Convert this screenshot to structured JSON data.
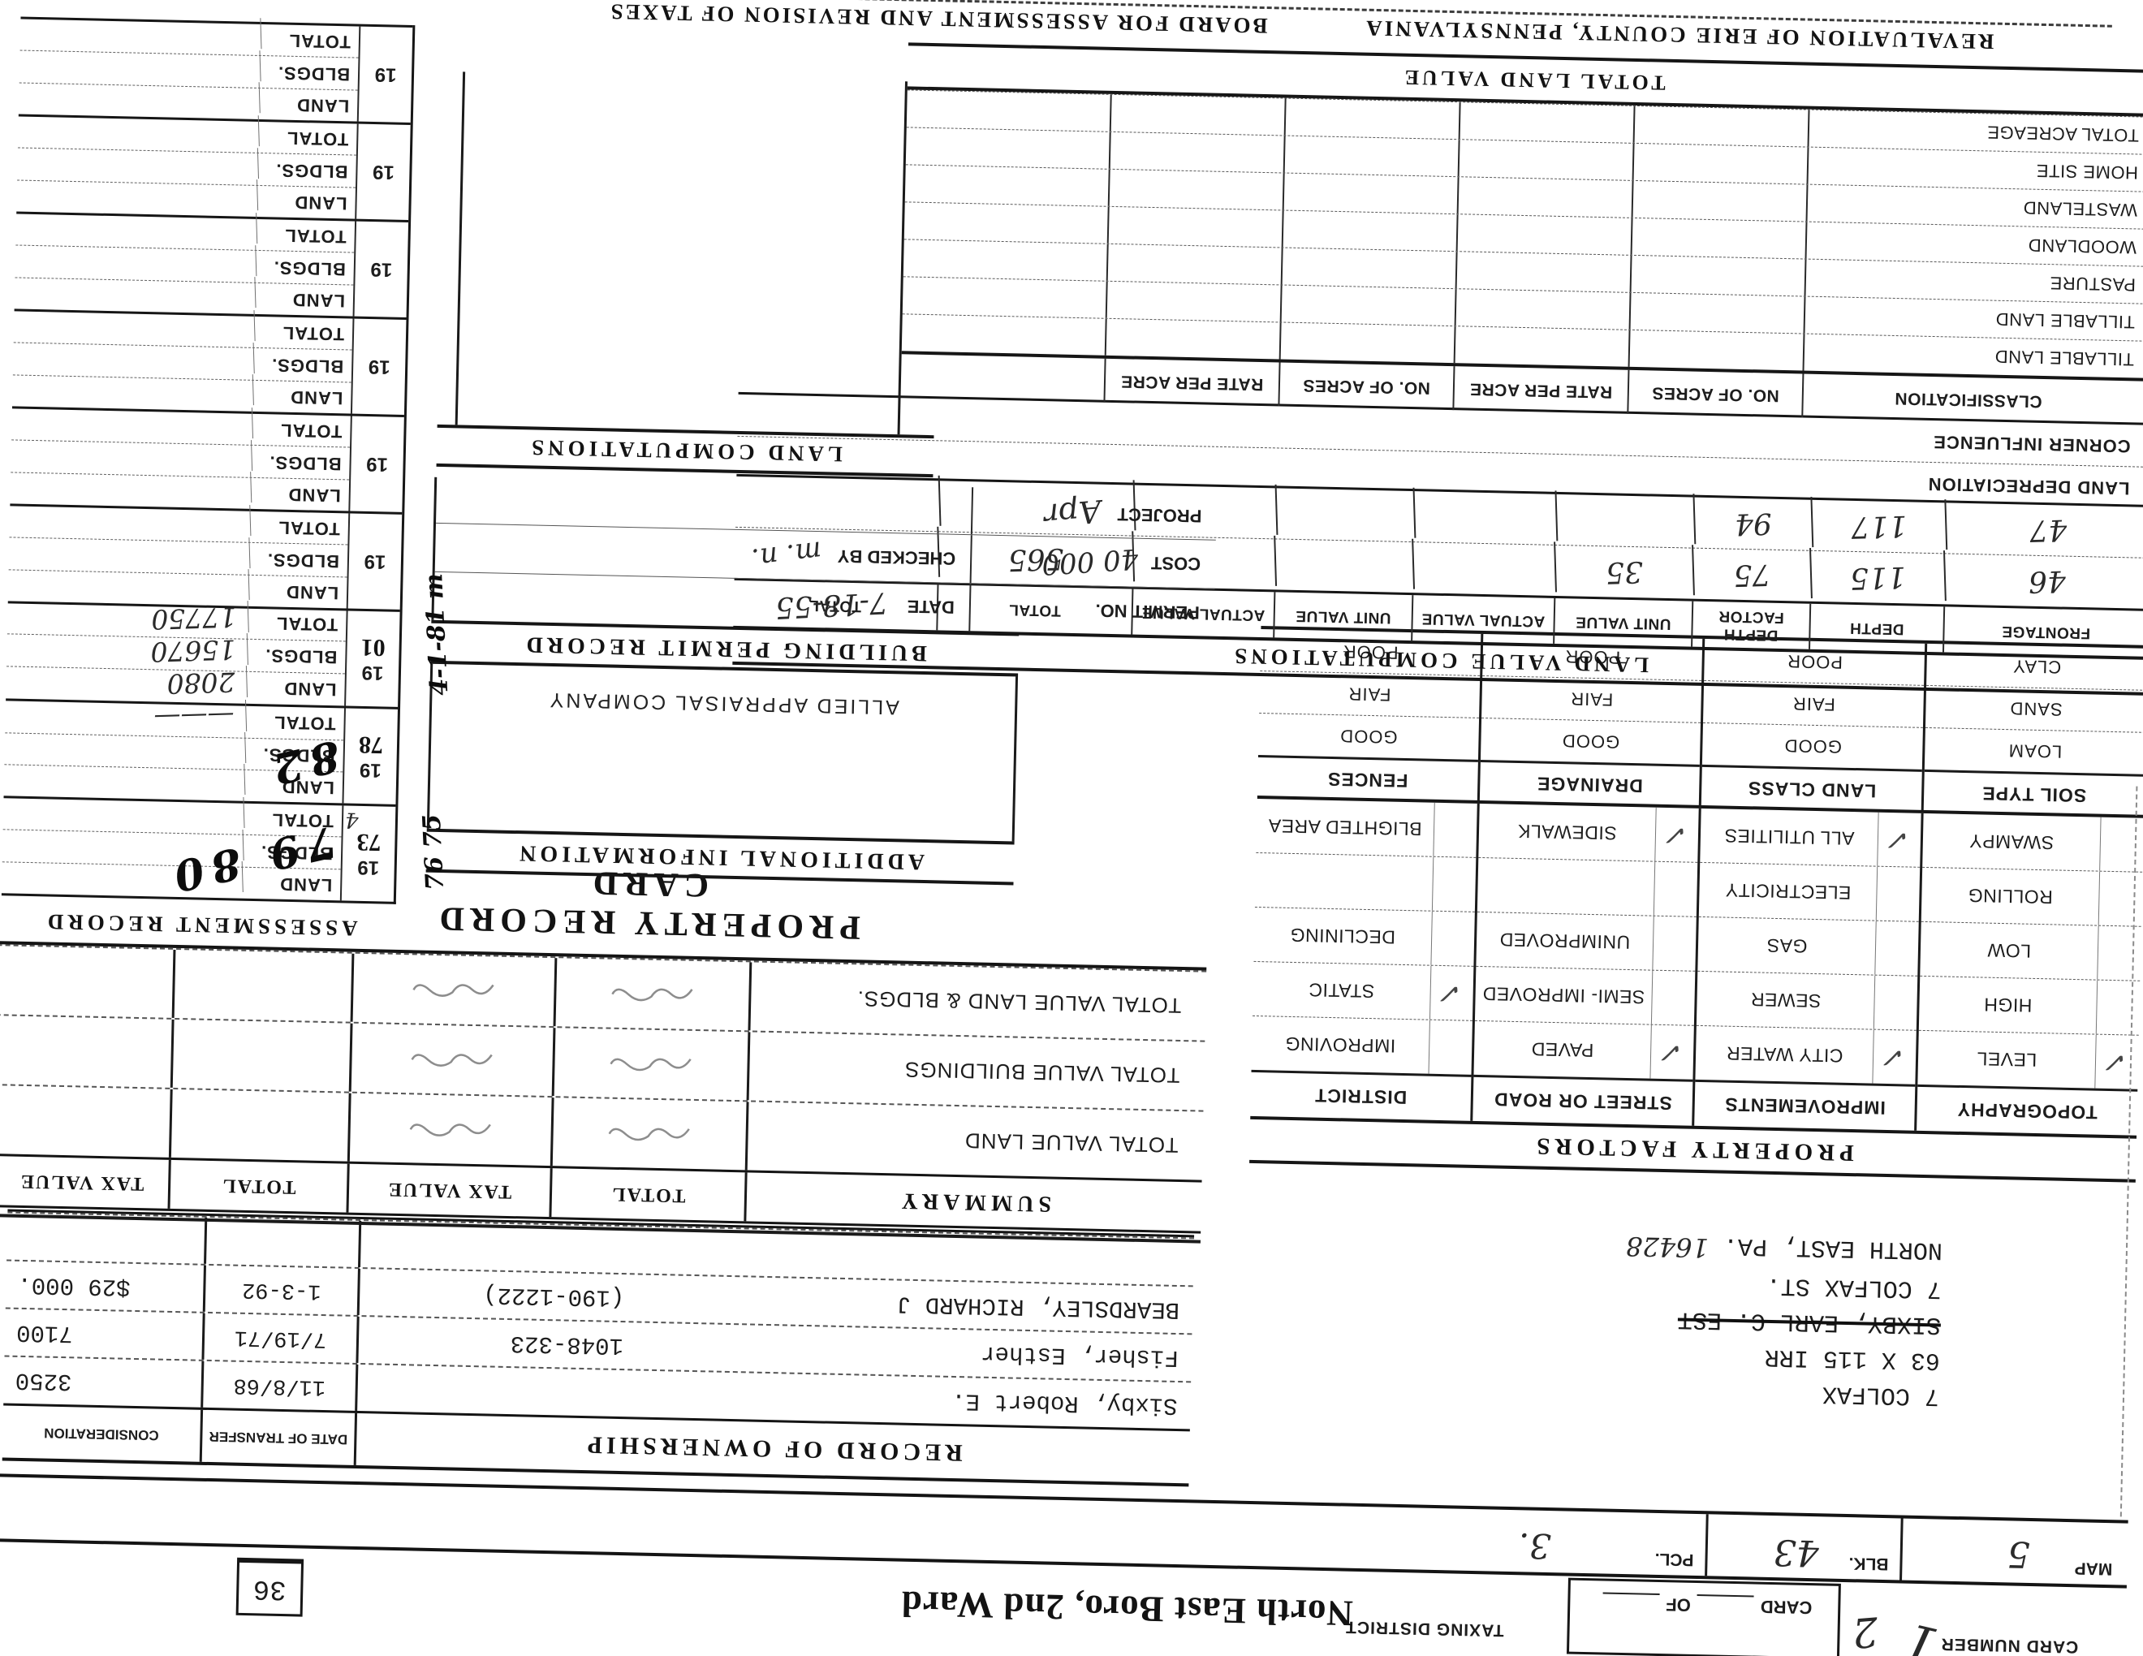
{
  "header": {
    "card_number_label": "CARD NUMBER",
    "card_number_value": "1",
    "card_number_extra": "2",
    "card_of_label": "CARD",
    "card_of_of": "OF",
    "taxing_district_label": "TAXING DISTRICT",
    "taxing_district_value": "North East Boro, 2nd Ward",
    "map_label": "MAP",
    "map_value": "5",
    "blk_label": "BLK.",
    "blk_value": "43",
    "pcl_label": "PCL.",
    "pcl_value": "3.",
    "index_box_value": "36"
  },
  "ownership": {
    "title": "RECORD OF OWNERSHIP",
    "date_col": "DATE OF TRANSFER",
    "consideration_col": "CONSIDERATION",
    "rows": [
      {
        "name": "Sixby, Robert E.",
        "book_page": "",
        "date": "11/8/68",
        "consideration": "3250"
      },
      {
        "name": "Fisher, Esther",
        "book_page": "1048-323",
        "date": "7/19/71",
        "consideration": "7100"
      },
      {
        "name": "BEARDSLEY, RICHARD J",
        "book_page": "(190-1222)",
        "date": "1-3-92",
        "consideration": "$29 000."
      }
    ]
  },
  "property_location": {
    "line1": "7 COLFAX",
    "line2": "63 X 115 IRR",
    "line3": "SIXBY, EARL C. EST",
    "line4": "7 COLFAX ST.",
    "line5": "NORTH EAST, PA.",
    "zip_handwritten": "16428"
  },
  "title": "PROPERTY RECORD CARD",
  "summary": {
    "title": "SUMMARY",
    "total_col": "TOTAL",
    "tax_col": "TAX VALUE",
    "total_col2": "TOTAL",
    "tax_col2": "TAX VALUE",
    "rows": [
      {
        "label": "TOTAL VALUE LAND"
      },
      {
        "label": "TOTAL VALUE BUILDINGS"
      },
      {
        "label": "TOTAL VALUE LAND & BLDGS."
      }
    ]
  },
  "property_factors": {
    "title": "PROPERTY FACTORS",
    "groups": [
      {
        "header": "TOPOGRAPHY",
        "rows": [
          {
            "label": "LEVEL",
            "check": "✓"
          },
          {
            "label": "HIGH",
            "check": ""
          },
          {
            "label": "LOW",
            "check": ""
          },
          {
            "label": "ROLLING",
            "check": ""
          },
          {
            "label": "SWAMPY",
            "check": ""
          }
        ]
      },
      {
        "header": "IMPROVEMENTS",
        "rows": [
          {
            "label": "CITY WATER",
            "check": "✓"
          },
          {
            "label": "SEWER",
            "check": ""
          },
          {
            "label": "GAS",
            "check": ""
          },
          {
            "label": "ELECTRICITY",
            "check": ""
          },
          {
            "label": "ALL UTILITIES",
            "check": "✓"
          }
        ]
      },
      {
        "header": "STREET OR ROAD",
        "rows": [
          {
            "label": "PAVED",
            "check": "✓"
          },
          {
            "label": "SEMI- IMPROVED",
            "check": ""
          },
          {
            "label": "UNIMPROVED",
            "check": ""
          },
          {
            "label": "",
            "check": ""
          },
          {
            "label": "SIDEWALK",
            "check": "✓"
          }
        ]
      },
      {
        "header": "DISTRICT",
        "rows": [
          {
            "label": "IMPROVING",
            "check": ""
          },
          {
            "label": "STATIC",
            "check": "✓"
          },
          {
            "label": "DECLINING",
            "check": ""
          },
          {
            "label": "",
            "check": ""
          },
          {
            "label": "BLIGHTED AREA",
            "check": ""
          }
        ]
      }
    ]
  },
  "soil_section": {
    "headers": [
      "SOIL TYPE",
      "LAND CLASS",
      "DRAINAGE",
      "FENCES"
    ],
    "soil_rows": [
      "LOAM",
      "SAND",
      "CLAY"
    ],
    "grade_rows": [
      "GOOD",
      "FAIR",
      "POOR"
    ]
  },
  "land_value_computations": {
    "title": "LAND VALUE COMPUTATIONS",
    "headers": [
      "FRONTAGE",
      "DEPTH",
      "DEPTH FACTOR",
      "UNIT VALUE",
      "ACTUAL VALUE",
      "UNIT VALUE",
      "ACTUAL VALUE",
      "TOTAL",
      "TOTAL"
    ],
    "rows": [
      {
        "frontage": "46",
        "depth": "115",
        "depth_factor": "75",
        "unit_value": "35",
        "actual_value": "",
        "unit_value2": "",
        "actual_value2": "",
        "total": "565",
        "total2": ""
      },
      {
        "frontage": "47",
        "depth": "117",
        "depth_factor": "94",
        "unit_value": "",
        "actual_value": "",
        "unit_value2": "",
        "actual_value2": "",
        "total": "",
        "total2": ""
      }
    ],
    "land_depreciation_label": "LAND DEPRECIATION",
    "corner_influence_label": "CORNER INFLUENCE"
  },
  "classification": {
    "headers": [
      "CLASSIFICATION",
      "NO. OF ACRES",
      "RATE PER ACRE",
      "NO. OF ACRES",
      "RATE PER ACRE"
    ],
    "rows": [
      "TILLABLE LAND",
      "TILLABLE LAND",
      "PASTURE",
      "WOODLAND",
      "WASTELAND",
      "HOME SITE",
      "TOTAL ACREAGE"
    ],
    "total_land_value": "TOTAL LAND VALUE"
  },
  "additional_information_title": "ADDITIONAL INFORMATION",
  "appraisal_company": "ALLIED APPRAISAL COMPANY",
  "building_permit": {
    "title": "BUILDING PERMIT RECORD",
    "permit_no_label": "PERMIT NO.",
    "cost_label": "COST",
    "cost_value": "40 000",
    "project_label": "PROJECT",
    "project_value": "Apr",
    "date_label": "DATE",
    "date_value": "7-18-55",
    "checked_by_label": "CHECKED BY",
    "checked_by_value": "m. n."
  },
  "land_computations_title": "LAND COMPUTATIONS",
  "assessment_record": {
    "title": "ASSESSMENT RECORD",
    "row_labels": [
      "LAND",
      "BLDGS.",
      "TOTAL"
    ],
    "blocks": [
      {
        "year": "19",
        "suffix": "73",
        "overlay": "79 80",
        "margin": "76 75",
        "note": "4",
        "land": "",
        "bldgs": "",
        "total": ""
      },
      {
        "year": "19",
        "suffix": "78",
        "overlay": "82",
        "margin": "",
        "note": "",
        "land": "",
        "bldgs": "",
        "total": "———"
      },
      {
        "year": "19",
        "suffix": "01",
        "overlay": "",
        "margin": "4-1-81 m",
        "note": "",
        "land": "2080",
        "bldgs": "15670",
        "total": "17750"
      },
      {
        "year": "19",
        "suffix": "",
        "overlay": "",
        "margin": "",
        "note": "",
        "land": "",
        "bldgs": "",
        "total": ""
      },
      {
        "year": "19",
        "suffix": "",
        "overlay": "",
        "margin": "",
        "note": "",
        "land": "",
        "bldgs": "",
        "total": ""
      },
      {
        "year": "19",
        "suffix": "",
        "overlay": "",
        "margin": "",
        "note": "",
        "land": "",
        "bldgs": "",
        "total": ""
      },
      {
        "year": "19",
        "suffix": "",
        "overlay": "",
        "margin": "",
        "note": "",
        "land": "",
        "bldgs": "",
        "total": ""
      },
      {
        "year": "19",
        "suffix": "",
        "overlay": "",
        "margin": "",
        "note": "",
        "land": "",
        "bldgs": "",
        "total": ""
      },
      {
        "year": "19",
        "suffix": "",
        "overlay": "",
        "margin": "",
        "note": "",
        "land": "",
        "bldgs": "",
        "total": ""
      }
    ]
  },
  "footer": {
    "left": "REVALUATION OF ERIE COUNTY, PENNSYLVANIA",
    "right": "BOARD FOR ASSESSMENT AND REVISION OF TAXES"
  }
}
